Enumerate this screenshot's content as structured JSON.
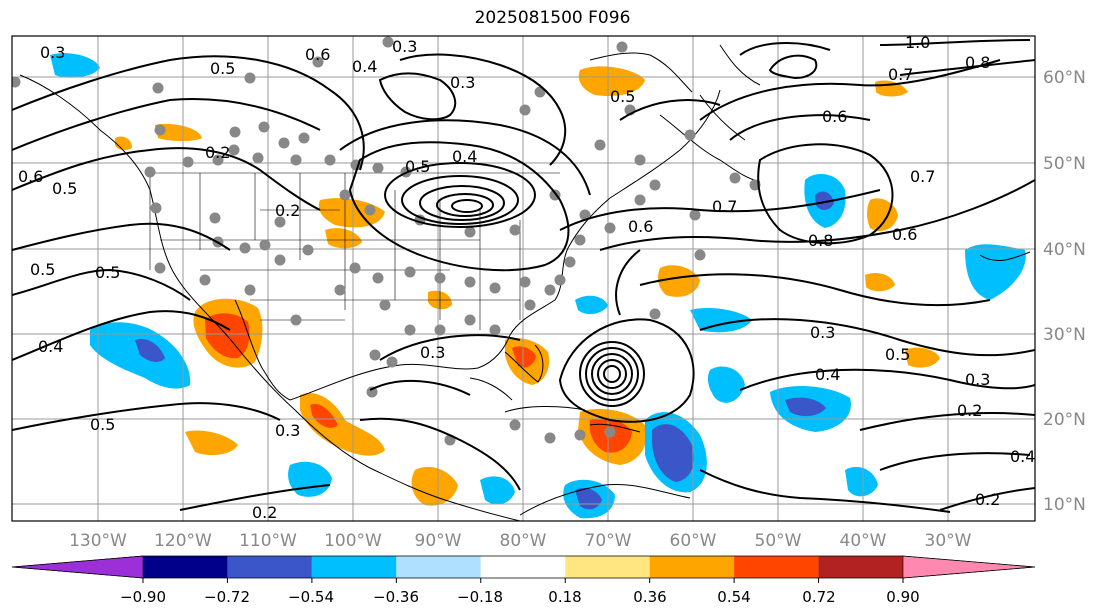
{
  "title": "2025081500 F096",
  "lon_labels": [
    "130°W",
    "120°W",
    "110°W",
    "100°W",
    "90°W",
    "80°W",
    "70°W",
    "60°W",
    "50°W",
    "40°W",
    "30°W"
  ],
  "lat_labels": [
    "60°N",
    "50°N",
    "40°N",
    "30°N",
    "20°N",
    "10°N"
  ],
  "colorbar": {
    "ticks": [
      "−0.90",
      "−0.72",
      "−0.54",
      "−0.36",
      "−0.18",
      "0.18",
      "0.36",
      "0.54",
      "0.72",
      "0.90"
    ],
    "colors": [
      "#9b30d9",
      "#00008b",
      "#3a56c8",
      "#00bfff",
      "#b0e0ff",
      "#ffffff",
      "#ffe680",
      "#ffa500",
      "#ff4500",
      "#b22222",
      "#ff88b0"
    ]
  },
  "contour_labels": [
    "0.3",
    "0.5",
    "0.6",
    "0.4",
    "0.3",
    "0.2",
    "0.3",
    "0.5",
    "1.0",
    "0.8",
    "0.7",
    "0.6",
    "0.5",
    "0.6",
    "0.2",
    "0.5",
    "0.4",
    "0.6",
    "0.8",
    "0.7",
    "0.6",
    "0.7",
    "0.5",
    "0.5",
    "0.4",
    "0.3",
    "0.3",
    "0.4",
    "0.5",
    "0.3",
    "0.2",
    "0.5",
    "0.3",
    "0.4",
    "0.2",
    "0.2"
  ],
  "colors": {
    "contour": "#000000",
    "grid": "#999999",
    "dots": "#888888",
    "coast": "#000000"
  }
}
